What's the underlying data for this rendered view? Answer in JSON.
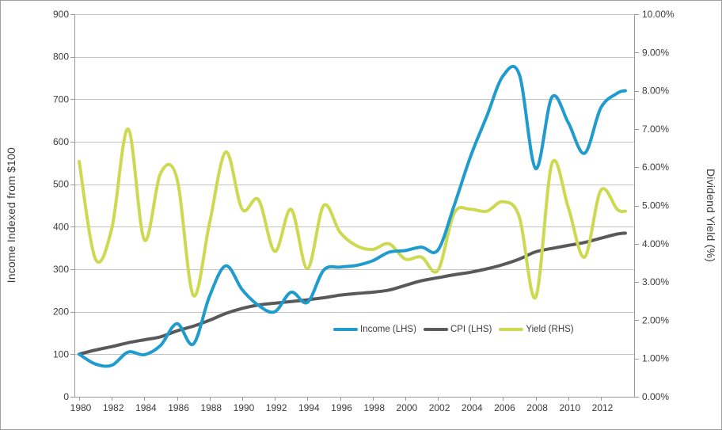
{
  "window": {
    "background": "#ffffff",
    "border_color": "#9e9e9e"
  },
  "chart_data": {
    "type": "line",
    "title": "",
    "grid": {
      "horizontal": true,
      "vertical": false,
      "color": "#c3c3c3"
    },
    "axis_line_color": "#9a9a9a",
    "tick_label_color": "#3b3b3b",
    "x": [
      1980,
      1981,
      1982,
      1983,
      1984,
      1985,
      1986,
      1987,
      1988,
      1989,
      1990,
      1991,
      1992,
      1993,
      1994,
      1995,
      1996,
      1997,
      1998,
      1999,
      2000,
      2001,
      2002,
      2003,
      2004,
      2005,
      2006,
      2007,
      2008,
      2009,
      2010,
      2011,
      2012,
      2013,
      2013.5
    ],
    "x_axis": {
      "tick_years": [
        1980,
        1982,
        1984,
        1986,
        1988,
        1990,
        1992,
        1994,
        1996,
        1998,
        2000,
        2002,
        2004,
        2006,
        2008,
        2010,
        2012
      ],
      "tick_labels": [
        "1980",
        "1982",
        "1984",
        "1986",
        "1988",
        "1990",
        "1992",
        "1994",
        "1996",
        "1998",
        "2000",
        "2002",
        "2004",
        "2006",
        "2008",
        "2010",
        "2012"
      ]
    },
    "left_axis": {
      "title": "Income Indexed from $100",
      "min": 0,
      "max": 900,
      "step": 100,
      "ticks": [
        "0",
        "100",
        "200",
        "300",
        "400",
        "500",
        "600",
        "700",
        "800",
        "900"
      ]
    },
    "right_axis": {
      "title": "Dividend Yield (%)",
      "min": 0,
      "max": 10,
      "step": 1,
      "ticks": [
        "0.00%",
        "1.00%",
        "2.00%",
        "3.00%",
        "4.00%",
        "5.00%",
        "6.00%",
        "7.00%",
        "8.00%",
        "9.00%",
        "10.00%"
      ]
    },
    "series": [
      {
        "name": "Income (LHS)",
        "axis": "left",
        "color": "#1f9bce",
        "values": [
          100,
          77,
          74,
          105,
          99,
          121,
          172,
          124,
          237,
          308,
          252,
          215,
          200,
          246,
          222,
          298,
          305,
          309,
          320,
          340,
          344,
          352,
          345,
          450,
          565,
          660,
          755,
          758,
          537,
          705,
          645,
          573,
          680,
          714,
          720
        ]
      },
      {
        "name": "CPI (LHS)",
        "axis": "left",
        "color": "#58595b",
        "values": [
          100,
          110,
          118,
          127,
          134,
          141,
          155,
          166,
          180,
          196,
          208,
          216,
          220,
          224,
          228,
          233,
          239,
          243,
          246,
          251,
          262,
          273,
          280,
          287,
          293,
          301,
          311,
          324,
          341,
          349,
          356,
          363,
          373,
          383,
          385
        ]
      },
      {
        "name": "Yield (RHS)",
        "axis": "right",
        "color": "#cdda51",
        "values": [
          6.15,
          3.6,
          4.4,
          7.0,
          4.1,
          5.85,
          5.7,
          2.65,
          4.55,
          6.4,
          4.9,
          5.15,
          3.8,
          4.9,
          3.35,
          5.0,
          4.3,
          3.95,
          3.85,
          4.0,
          3.6,
          3.65,
          3.3,
          4.8,
          4.9,
          4.85,
          5.1,
          4.7,
          2.6,
          6.1,
          4.95,
          3.65,
          5.4,
          4.9,
          4.85
        ],
        "value_format": "percent"
      }
    ],
    "legend": {
      "position": "inside-bottom-center",
      "labels": [
        "Income (LHS)",
        "CPI (LHS)",
        "Yield (RHS)"
      ]
    }
  }
}
